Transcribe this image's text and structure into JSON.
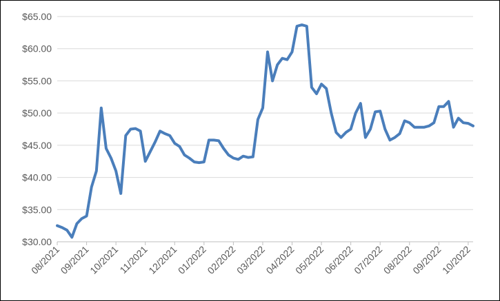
{
  "chart_data": {
    "type": "line",
    "categories": [
      "08/2021",
      null,
      null,
      null,
      null,
      null,
      "09/2021",
      null,
      null,
      null,
      null,
      null,
      "10/2021",
      null,
      null,
      null,
      null,
      null,
      "11/2021",
      null,
      null,
      null,
      null,
      null,
      "12/2021",
      null,
      null,
      null,
      null,
      null,
      "01/2022",
      null,
      null,
      null,
      null,
      null,
      "02/2022",
      null,
      null,
      null,
      null,
      null,
      "03/2022",
      null,
      null,
      null,
      null,
      null,
      "04/2022",
      null,
      null,
      null,
      null,
      null,
      "05/2022",
      null,
      null,
      null,
      null,
      null,
      "06/2022",
      null,
      null,
      null,
      null,
      null,
      "07/2022",
      null,
      null,
      null,
      null,
      null,
      "08/2022",
      null,
      null,
      null,
      null,
      null,
      "09/2022",
      null,
      null,
      null,
      null,
      null,
      "10/2022",
      null
    ],
    "values": [
      32.5,
      32.2,
      31.8,
      30.7,
      32.8,
      33.6,
      34,
      38.5,
      41,
      50.8,
      44.5,
      43,
      41,
      37.5,
      46.5,
      47.5,
      47.6,
      47.2,
      42.5,
      44,
      45.5,
      47.2,
      46.8,
      46.5,
      45.3,
      44.8,
      43.5,
      43,
      42.4,
      42.3,
      42.4,
      45.8,
      45.8,
      45.7,
      44.5,
      43.5,
      43,
      42.8,
      43.3,
      43.1,
      43.2,
      49,
      50.8,
      59.5,
      55,
      57.5,
      58.5,
      58.3,
      59.5,
      63.5,
      63.7,
      63.5,
      54,
      53,
      54.5,
      53.8,
      50,
      47,
      46.2,
      47,
      47.5,
      50,
      51.5,
      46.2,
      47.5,
      50.2,
      50.3,
      47.5,
      45.8,
      46.2,
      46.8,
      48.8,
      48.5,
      47.8,
      47.8,
      47.8,
      48,
      48.5,
      51,
      51,
      51.8,
      47.8,
      49.2,
      48.5,
      48.4,
      48
    ],
    "color": "#4a7ebb",
    "ylim": [
      30,
      65
    ],
    "yticks": [
      {
        "value": 30,
        "label": "$30.00"
      },
      {
        "value": 35,
        "label": "$35.00"
      },
      {
        "value": 40,
        "label": "$40.00"
      },
      {
        "value": 45,
        "label": "$45.00"
      },
      {
        "value": 50,
        "label": "$50.00"
      },
      {
        "value": 55,
        "label": "$55.00"
      },
      {
        "value": 60,
        "label": "$60.00"
      },
      {
        "value": 65,
        "label": "$65.00"
      }
    ],
    "grid": true
  }
}
